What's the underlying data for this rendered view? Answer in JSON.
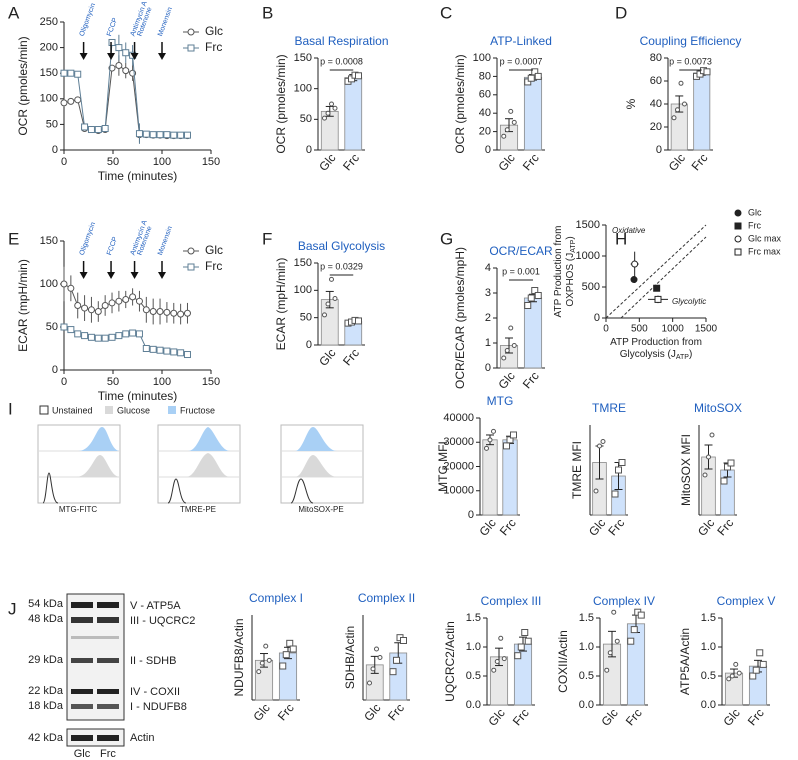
{
  "panel_labels": [
    "A",
    "B",
    "C",
    "D",
    "E",
    "F",
    "G",
    "H",
    "I",
    "J"
  ],
  "chart_data": [
    {
      "type": "line",
      "ylabel": "OCR (pmoles/min)",
      "xlabel": "Time (minutes)",
      "x": [
        0,
        7,
        14,
        21,
        28,
        35,
        42,
        49,
        56,
        63,
        70,
        77,
        84,
        91,
        98,
        105,
        112,
        119,
        126
      ],
      "series": [
        {
          "name": "Glc",
          "color": "#555555",
          "marker": "circle",
          "values": [
            92,
            95,
            98,
            42,
            40,
            38,
            40,
            160,
            165,
            155,
            150,
            30,
            30,
            29,
            29,
            28,
            28,
            28,
            28
          ],
          "errors": [
            8,
            6,
            5,
            5,
            3,
            3,
            3,
            3,
            20,
            15,
            15,
            15,
            2,
            2,
            2,
            2,
            2,
            2,
            2
          ]
        },
        {
          "name": "Frc",
          "color": "#5f7f96",
          "marker": "square",
          "values": [
            150,
            150,
            148,
            45,
            40,
            40,
            42,
            210,
            200,
            190,
            185,
            32,
            31,
            30,
            30,
            30,
            29,
            29,
            29
          ],
          "errors": [
            5,
            5,
            5,
            4,
            3,
            3,
            3,
            3,
            25,
            20,
            20,
            20,
            2,
            2,
            2,
            2,
            2,
            2,
            2
          ]
        }
      ],
      "xlim": [
        0,
        150
      ],
      "xticks": [
        0,
        50,
        100,
        150
      ],
      "ylim": [
        0,
        250
      ],
      "yticks": [
        0,
        50,
        100,
        150,
        200,
        250
      ],
      "annotations": [
        [
          "Oligomycin"
        ],
        [
          "FCCP"
        ],
        [
          "Antimycin A",
          "Rotenone"
        ],
        [
          "Monensin"
        ]
      ]
    },
    {
      "type": "bar",
      "title": "Basal Respiration",
      "ylabel": "OCR (pmoles/min)",
      "categories": [
        "Glc",
        "Frc"
      ],
      "values": [
        63,
        118
      ],
      "errors": [
        8,
        5
      ],
      "points": [
        [
          52,
          60,
          75,
          68
        ],
        [
          112,
          116,
          122,
          121
        ]
      ],
      "colors": [
        "#e8e8e8",
        "#cfe2fb"
      ],
      "ylim": [
        0,
        150
      ],
      "yticks": [
        0,
        50,
        100,
        150
      ],
      "pvalue": "p = 0.0008"
    },
    {
      "type": "bar",
      "title": "ATP-Linked",
      "ylabel": "OCR (pmoles/min)",
      "categories": [
        "Glc",
        "Frc"
      ],
      "values": [
        27,
        79
      ],
      "errors": [
        7,
        3
      ],
      "points": [
        [
          15,
          22,
          42,
          30
        ],
        [
          74,
          78,
          85,
          80
        ]
      ],
      "colors": [
        "#e8e8e8",
        "#cfe2fb"
      ],
      "ylim": [
        0,
        100
      ],
      "yticks": [
        0,
        20,
        40,
        60,
        80,
        100
      ],
      "pvalue": "p = 0.0007"
    },
    {
      "type": "bar",
      "title": "Coupling Efficiency",
      "ylabel": "%",
      "categories": [
        "Glc",
        "Frc"
      ],
      "values": [
        40,
        67
      ],
      "errors": [
        7,
        2
      ],
      "points": [
        [
          28,
          35,
          58,
          40
        ],
        [
          64,
          66,
          69,
          68
        ]
      ],
      "colors": [
        "#e8e8e8",
        "#cfe2fb"
      ],
      "ylim": [
        0,
        80
      ],
      "yticks": [
        0,
        20,
        40,
        60,
        80
      ],
      "pvalue": "p = 0.0073"
    },
    {
      "type": "line",
      "ylabel": "ECAR (mpH/min)",
      "xlabel": "Time (minutes)",
      "x": [
        0,
        7,
        14,
        21,
        28,
        35,
        42,
        49,
        56,
        63,
        70,
        77,
        84,
        91,
        98,
        105,
        112,
        119,
        126
      ],
      "series": [
        {
          "name": "Glc",
          "color": "#555555",
          "marker": "circle",
          "values": [
            100,
            95,
            75,
            72,
            70,
            68,
            75,
            78,
            80,
            82,
            85,
            80,
            70,
            68,
            68,
            67,
            66,
            65,
            66
          ],
          "errors": [
            20,
            15,
            15,
            15,
            15,
            12,
            12,
            12,
            12,
            10,
            10,
            12,
            15,
            15,
            15,
            12,
            12,
            12,
            12
          ]
        },
        {
          "name": "Frc",
          "color": "#5f7f96",
          "marker": "square",
          "values": [
            50,
            47,
            42,
            40,
            38,
            37,
            37,
            38,
            40,
            42,
            43,
            42,
            25,
            24,
            23,
            22,
            21,
            20,
            18
          ],
          "errors": [
            3,
            3,
            3,
            3,
            2,
            2,
            2,
            2,
            2,
            2,
            2,
            2,
            2,
            2,
            2,
            2,
            2,
            2,
            2
          ]
        }
      ],
      "xlim": [
        0,
        150
      ],
      "xticks": [
        0,
        50,
        100,
        150
      ],
      "ylim": [
        0,
        150
      ],
      "yticks": [
        0,
        50,
        100,
        150
      ],
      "annotations": [
        [
          "Oligomycin"
        ],
        [
          "FCCP"
        ],
        [
          "Antimycin A",
          "Rotenone"
        ],
        [
          "Monensin"
        ]
      ]
    },
    {
      "type": "bar",
      "title": "Basal Glycolysis",
      "ylabel": "ECAR (mpH/min)",
      "categories": [
        "Glc",
        "Frc"
      ],
      "values": [
        83,
        43
      ],
      "errors": [
        15,
        3
      ],
      "points": [
        [
          55,
          75,
          120,
          85
        ],
        [
          40,
          42,
          45,
          44
        ]
      ],
      "colors": [
        "#e8e8e8",
        "#cfe2fb"
      ],
      "ylim": [
        0,
        150
      ],
      "yticks": [
        0,
        50,
        100,
        150
      ],
      "pvalue": "p = 0.0329"
    },
    {
      "type": "bar",
      "title": "OCR/ECAR",
      "ylabel": "OCR/ECAR (pmoles/mpH)",
      "categories": [
        "Glc",
        "Frc"
      ],
      "values": [
        0.9,
        2.8
      ],
      "errors": [
        0.3,
        0.15
      ],
      "points": [
        [
          0.4,
          0.7,
          1.6,
          0.9
        ],
        [
          2.5,
          2.8,
          3.1,
          2.9
        ]
      ],
      "colors": [
        "#e8e8e8",
        "#cfe2fb"
      ],
      "ylim": [
        0,
        4
      ],
      "yticks": [
        0,
        1,
        2,
        3,
        4
      ],
      "pvalue": "p = 0.001"
    },
    {
      "type": "scatter",
      "xlabel": [
        "ATP Production from",
        "Glycolysis (J",
        "ATP",
        ")"
      ],
      "ylabel": [
        "ATP Production from",
        "OXPHOS (J",
        "ATP",
        ")"
      ],
      "series": [
        {
          "name": "Glc",
          "marker": "circle-filled",
          "x": [
            420
          ],
          "values": [
            620
          ],
          "xerr": [
            40
          ],
          "yerr": [
            40
          ]
        },
        {
          "name": "Frc",
          "marker": "square-filled",
          "x": [
            760
          ],
          "values": [
            480
          ],
          "xerr": [
            40
          ],
          "yerr": [
            30
          ]
        },
        {
          "name": "Glc max",
          "marker": "circle",
          "x": [
            430
          ],
          "values": [
            870
          ],
          "xerr": [
            60
          ],
          "yerr": [
            200
          ]
        },
        {
          "name": "Frc max",
          "marker": "square",
          "x": [
            780
          ],
          "values": [
            300
          ],
          "xerr": [
            150
          ],
          "yerr": [
            60
          ]
        }
      ],
      "xlim": [
        0,
        1500
      ],
      "xticks": [
        0,
        500,
        1000,
        1500
      ],
      "ylim": [
        0,
        1500
      ],
      "yticks": [
        0,
        500,
        1000,
        1500
      ],
      "region_labels": [
        "Oxidative",
        "Glycolytic"
      ]
    },
    {
      "type": "bar",
      "title": "MTG",
      "ylabel": "MTG MFI",
      "categories": [
        "Glc",
        "Frc"
      ],
      "values": [
        31000,
        31000
      ],
      "errors": [
        2000,
        1500
      ],
      "points": [
        [
          27500,
          31000,
          34500
        ],
        [
          28500,
          31000,
          33000
        ]
      ],
      "colors": [
        "#e8e8e8",
        "#cfe2fb"
      ],
      "ylim": [
        0,
        40000
      ],
      "yticks": [
        0,
        10000,
        20000,
        30000,
        40000
      ]
    },
    {
      "type": "bar",
      "title": "TMRE",
      "ylabel": "TMRE MFI",
      "categories": [
        "Glc",
        "Frc"
      ],
      "values": [
        1750,
        1300
      ],
      "errors": [
        550,
        450
      ],
      "points": [
        [
          800,
          2300,
          2450
        ],
        [
          700,
          1500,
          1750
        ]
      ],
      "colors": [
        "#e8e8e8",
        "#cfe2fb"
      ],
      "ylim": [
        0,
        3000
      ],
      "yticks": []
    },
    {
      "type": "bar",
      "title": "MitoSOX",
      "ylabel": "MitoSOX MFI",
      "categories": [
        "Glc",
        "Frc"
      ],
      "values": [
        290,
        225
      ],
      "errors": [
        60,
        35
      ],
      "points": [
        [
          200,
          290,
          400
        ],
        [
          170,
          240,
          260
        ]
      ],
      "colors": [
        "#e8e8e8",
        "#cfe2fb"
      ],
      "ylim": [
        0,
        450
      ],
      "yticks": []
    },
    {
      "type": "bar",
      "title": "Complex I",
      "ylabel": "NDUFB8/Actin",
      "categories": [
        "Glc",
        "Frc"
      ],
      "values": [
        0.7,
        0.83
      ],
      "errors": [
        0.12,
        0.1
      ],
      "points": [
        [
          0.5,
          0.65,
          0.95,
          0.7
        ],
        [
          0.6,
          0.8,
          1.0,
          0.9
        ]
      ],
      "colors": [
        "#e8e8e8",
        "#cfe2fb"
      ],
      "ylim": [
        0,
        1.5
      ],
      "yticks": []
    },
    {
      "type": "bar",
      "title": "Complex II",
      "ylabel": "SDHB/Actin",
      "categories": [
        "Glc",
        "Frc"
      ],
      "values": [
        0.62,
        0.83
      ],
      "errors": [
        0.15,
        0.18
      ],
      "points": [
        [
          0.3,
          0.55,
          0.9,
          0.75
        ],
        [
          0.5,
          0.7,
          1.1,
          1.05
        ]
      ],
      "colors": [
        "#e8e8e8",
        "#cfe2fb"
      ],
      "ylim": [
        0,
        1.5
      ],
      "yticks": []
    },
    {
      "type": "bar",
      "title": "Complex III",
      "ylabel": "UQCRC2/Actin",
      "categories": [
        "Glc",
        "Frc"
      ],
      "values": [
        0.83,
        1.05
      ],
      "errors": [
        0.15,
        0.12
      ],
      "points": [
        [
          0.6,
          0.75,
          1.15,
          0.8
        ],
        [
          0.85,
          1.0,
          1.25,
          1.1
        ]
      ],
      "colors": [
        "#e8e8e8",
        "#cfe2fb"
      ],
      "ylim": [
        0,
        1.5
      ],
      "yticks": [
        {
          "value": 0,
          "label": "0.0"
        },
        {
          "value": 0.5,
          "label": "0.5"
        },
        {
          "value": 1,
          "label": "1.0"
        },
        {
          "value": 1.5,
          "label": "1.5"
        }
      ]
    },
    {
      "type": "bar",
      "title": "Complex IV",
      "ylabel": "COXII/Actin",
      "categories": [
        "Glc",
        "Frc"
      ],
      "values": [
        1.05,
        1.4
      ],
      "errors": [
        0.22,
        0.15
      ],
      "points": [
        [
          0.6,
          0.9,
          1.6,
          1.1
        ],
        [
          1.1,
          1.3,
          1.6,
          1.55
        ]
      ],
      "colors": [
        "#e8e8e8",
        "#cfe2fb"
      ],
      "ylim": [
        0,
        1.5
      ],
      "yticks": [
        {
          "value": 0,
          "label": "0.0"
        },
        {
          "value": 0.5,
          "label": "0.5"
        },
        {
          "value": 1,
          "label": "1.0"
        },
        {
          "value": 1.5,
          "label": "1.5"
        }
      ]
    },
    {
      "type": "bar",
      "title": "Complex V",
      "ylabel": "ATP5A/Actin",
      "categories": [
        "Glc",
        "Frc"
      ],
      "values": [
        0.55,
        0.67
      ],
      "errors": [
        0.07,
        0.1
      ],
      "points": [
        [
          0.45,
          0.5,
          0.7,
          0.55
        ],
        [
          0.5,
          0.6,
          0.9,
          0.7
        ]
      ],
      "colors": [
        "#e8e8e8",
        "#cfe2fb"
      ],
      "ylim": [
        0,
        1.5
      ],
      "yticks": [
        {
          "value": 0,
          "label": "0.0"
        },
        {
          "value": 0.5,
          "label": "0.5"
        },
        {
          "value": 1,
          "label": "1.0"
        },
        {
          "value": 1.5,
          "label": "1.5"
        }
      ]
    }
  ],
  "flow": {
    "legend": [
      "Unstained",
      "Glucose",
      "Fructose"
    ],
    "xlabels": [
      "MTG-FITC",
      "TMRE-PE",
      "MitoSOX-PE"
    ]
  },
  "blot": {
    "markers": [
      "54 kDa",
      "48 kDa",
      "29 kDa",
      "22 kDa",
      "18 kDa",
      "42 kDa"
    ],
    "bands": [
      "V - ATP5A",
      "III - UQCRC2",
      "II - SDHB",
      "IV - COXII",
      "I - NDUFB8",
      "Actin"
    ],
    "lanes": [
      "Glc",
      "Frc"
    ]
  }
}
